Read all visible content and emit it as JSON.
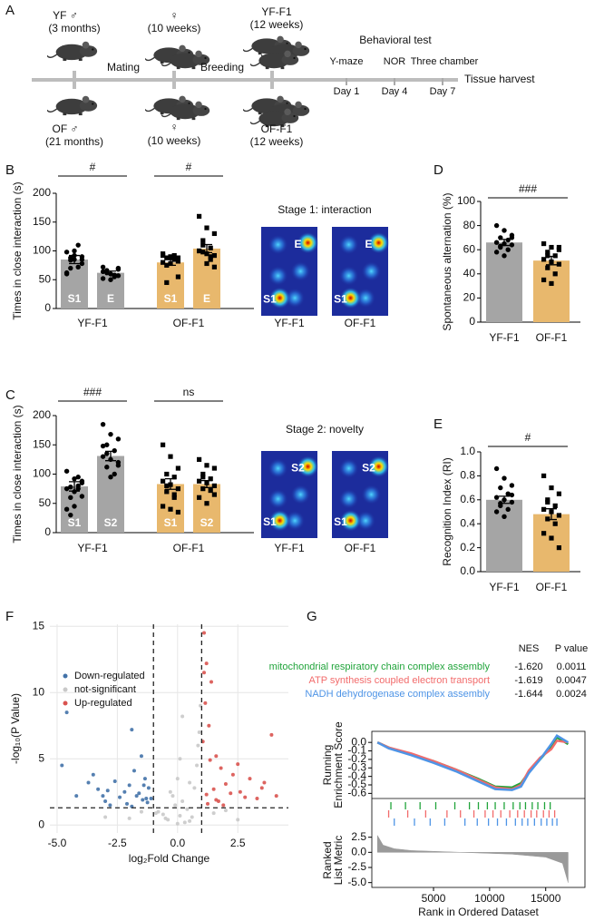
{
  "diagram": {
    "panel": "A",
    "top": [
      {
        "name": "YF ♂",
        "age": "(3 months)"
      },
      {
        "name": "♀",
        "age": "(10 weeks)"
      },
      {
        "name": "YF-F1",
        "age": "(12 weeks)"
      }
    ],
    "bottom": [
      {
        "name": "OF ♂",
        "age": "(21 months)"
      },
      {
        "name": "♀",
        "age": "(10 weeks)"
      },
      {
        "name": "OF-F1",
        "age": "(12 weeks)"
      }
    ],
    "steps": [
      "Mating",
      "Breeding"
    ],
    "test_title": "Behavioral test",
    "tests": [
      {
        "name": "Y-maze",
        "day": "Day 1"
      },
      {
        "name": "NOR",
        "day": "Day 4"
      },
      {
        "name": "Three chamber",
        "day": "Day 7"
      }
    ],
    "end": "Tissue harvest"
  },
  "chart_data": [
    {
      "type": "bar",
      "panel": "B",
      "ylabel": "Times in close interaction (s)",
      "ylim": [
        0,
        200
      ],
      "yticks": [
        0,
        50,
        100,
        150,
        200
      ],
      "groups": [
        "YF-F1",
        "OF-F1"
      ],
      "categories": [
        "S1",
        "E",
        "S1",
        "E"
      ],
      "values": [
        85,
        62,
        80,
        104
      ],
      "errors": [
        7,
        3,
        5,
        7
      ],
      "colors": [
        "#a5a5a5",
        "#a5a5a5",
        "#e8b86d",
        "#e8b86d"
      ],
      "markers": [
        "circle",
        "circle",
        "square",
        "square"
      ],
      "points": [
        [
          98,
          92,
          78,
          88,
          72,
          60,
          100,
          85,
          84,
          110,
          62,
          85,
          90,
          70
        ],
        [
          72,
          60,
          68,
          66,
          55,
          52,
          50,
          70,
          62,
          58,
          64,
          60,
          57
        ],
        [
          92,
          90,
          88,
          75,
          85,
          95,
          88,
          55,
          45,
          92,
          80,
          78,
          82,
          88
        ],
        [
          160,
          140,
          130,
          110,
          105,
          100,
          95,
          92,
          98,
          85,
          100,
          78,
          72,
          118,
          90
        ]
      ],
      "annotations": [
        "#",
        "#"
      ],
      "heatmap": {
        "title": "Stage 1: interaction",
        "panels": [
          {
            "label": "YF-F1",
            "spots": [
              "E",
              "S1"
            ]
          },
          {
            "label": "OF-F1",
            "spots": [
              "E",
              "S1"
            ]
          }
        ]
      }
    },
    {
      "type": "bar",
      "panel": "C",
      "ylabel": "Times in close interaction (s)",
      "ylim": [
        0,
        200
      ],
      "yticks": [
        0,
        50,
        100,
        150,
        200
      ],
      "groups": [
        "YF-F1",
        "OF-F1"
      ],
      "categories": [
        "S1",
        "S2",
        "S1",
        "S2"
      ],
      "values": [
        79,
        131,
        83,
        83
      ],
      "errors": [
        8,
        8,
        9,
        6
      ],
      "colors": [
        "#a5a5a5",
        "#a5a5a5",
        "#e8b86d",
        "#e8b86d"
      ],
      "markers": [
        "circle",
        "circle",
        "square",
        "square"
      ],
      "points": [
        [
          105,
          92,
          85,
          78,
          80,
          75,
          70,
          62,
          60,
          95,
          40,
          45,
          88,
          30,
          75
        ],
        [
          185,
          168,
          160,
          150,
          140,
          130,
          125,
          120,
          112,
          100,
          148,
          95,
          115,
          135
        ],
        [
          150,
          130,
          110,
          100,
          95,
          88,
          82,
          75,
          70,
          60,
          45,
          40,
          35,
          80,
          65
        ],
        [
          125,
          115,
          110,
          100,
          92,
          88,
          85,
          80,
          75,
          72,
          60,
          50,
          65,
          95
        ]
      ],
      "annotations": [
        "###",
        "ns"
      ],
      "heatmap": {
        "title": "Stage 2: novelty",
        "panels": [
          {
            "label": "YF-F1",
            "spots": [
              "S2",
              "S1"
            ]
          },
          {
            "label": "OF-F1",
            "spots": [
              "S2",
              "S1"
            ]
          }
        ]
      }
    },
    {
      "type": "bar",
      "panel": "D",
      "ylabel": "Spontaneous alternation (%)",
      "ylim": [
        0,
        100
      ],
      "yticks": [
        0,
        20,
        40,
        60,
        80,
        100
      ],
      "categories": [
        "YF-F1",
        "OF-F1"
      ],
      "values": [
        66,
        51
      ],
      "errors": [
        2.5,
        3.5
      ],
      "colors": [
        "#a5a5a5",
        "#e8b86d"
      ],
      "markers": [
        "circle",
        "square"
      ],
      "points": [
        [
          80,
          76,
          72,
          70,
          68,
          66,
          65,
          64,
          62,
          60,
          58,
          55,
          70,
          63
        ],
        [
          65,
          62,
          62,
          58,
          55,
          52,
          50,
          48,
          45,
          40,
          35,
          32,
          60,
          55
        ]
      ],
      "annotations": [
        "###"
      ]
    },
    {
      "type": "bar",
      "panel": "E",
      "ylabel": "Recognition Index (RI)",
      "ylim": [
        0,
        1
      ],
      "yticks": [
        {
          "value": 0,
          "label": "0.0"
        },
        0.2,
        0.4,
        0.6,
        0.8,
        {
          "value": 1,
          "label": "1.0"
        }
      ],
      "categories": [
        "YF-F1",
        "OF-F1"
      ],
      "values": [
        0.6,
        0.48
      ],
      "errors": [
        0.03,
        0.045
      ],
      "colors": [
        "#a5a5a5",
        "#e8b86d"
      ],
      "markers": [
        "circle",
        "square"
      ],
      "points": [
        [
          0.86,
          0.78,
          0.72,
          0.7,
          0.65,
          0.62,
          0.6,
          0.58,
          0.55,
          0.52,
          0.5,
          0.46,
          0.64,
          0.57
        ],
        [
          0.8,
          0.7,
          0.65,
          0.6,
          0.55,
          0.52,
          0.5,
          0.47,
          0.44,
          0.4,
          0.32,
          0.28,
          0.2,
          0.58
        ]
      ],
      "annotations": [
        "#"
      ]
    },
    {
      "type": "scatter",
      "panel": "F",
      "xlabel": "log₂Fold Change",
      "ylabel": "-log₁₀(P Value)",
      "xlim": [
        -5.3,
        4.6
      ],
      "ylim": [
        -0.6,
        15.15
      ],
      "xticks": [
        {
          "value": -5,
          "label": "-5.0"
        },
        -2.5,
        {
          "value": 0,
          "label": "0.0"
        },
        2.5
      ],
      "yticks": [
        0,
        5,
        10,
        15
      ],
      "grid": true,
      "vlines": [
        -1,
        1
      ],
      "hline": 1.3,
      "series": [
        {
          "name": "Down-regulated",
          "color": "#4272a8",
          "x": [
            -4.8,
            -4.6,
            -3.7,
            -3.5,
            -3.1,
            -2.9,
            -1.9,
            -1.4,
            -2.6,
            -2.2,
            -1.8,
            -1.5,
            -1.3,
            -1.2,
            -3.0,
            -2.4,
            -2.0,
            -1.6,
            -1.25,
            -4.2,
            -3.3,
            -2.8,
            -1.7,
            -1.1,
            -2.1,
            -1.45,
            -1.9,
            -1.35
          ],
          "values": [
            4.5,
            8.5,
            3.2,
            3.8,
            2.2,
            2.6,
            7.2,
            3.0,
            3.3,
            2.5,
            4.1,
            5.2,
            2.0,
            2.8,
            1.8,
            2.1,
            3.0,
            2.4,
            1.7,
            2.2,
            2.7,
            1.5,
            2.2,
            2.0,
            1.6,
            1.9,
            1.4,
            3.5
          ]
        },
        {
          "name": "not-significant",
          "color": "#c9c9c9",
          "x": [
            -0.8,
            -0.5,
            -0.3,
            0,
            0.2,
            0.5,
            0.8,
            -0.6,
            0.4,
            0.9,
            -0.2,
            0.1,
            0.6,
            -0.9,
            0.3,
            0.7,
            0.95,
            0.85,
            -0.4,
            0.0,
            0.1,
            -0.1,
            1.5,
            -2.0,
            2.0,
            -3.0,
            0.5,
            -1.5,
            2.5,
            0.2
          ],
          "values": [
            1.0,
            0.5,
            2.5,
            3.5,
            1.8,
            0.3,
            4.5,
            0.8,
            1.2,
            7.0,
            2.2,
            5.0,
            0.6,
            0.9,
            0.2,
            2.8,
            9.0,
            6.0,
            0.4,
            0.1,
            0.7,
            1.5,
            0.9,
            0.5,
            1.1,
            0.6,
            3.2,
            1.0,
            0.4,
            8.2
          ]
        },
        {
          "name": "Up-regulated",
          "color": "#d9534f",
          "x": [
            1.1,
            1.2,
            1.4,
            1.6,
            2.0,
            2.5,
            3.0,
            3.6,
            3.9,
            4.1,
            1.3,
            1.5,
            1.8,
            2.2,
            2.8,
            3.3,
            1.05,
            1.15,
            1.7,
            2.3,
            1.25,
            2.6,
            1.9,
            3.5,
            1.35,
            1.1,
            1.2,
            1.6
          ],
          "values": [
            14.5,
            12.2,
            10.8,
            5.2,
            3.1,
            4.6,
            3.5,
            3.2,
            6.8,
            2.2,
            7.5,
            2.7,
            4.3,
            2.4,
            2.1,
            2.0,
            6.3,
            9.2,
            1.8,
            3.8,
            1.6,
            2.5,
            1.5,
            2.8,
            4.9,
            11.5,
            2.3,
            1.9
          ]
        }
      ]
    },
    {
      "type": "line",
      "panel": "G",
      "ylabel": [
        "Running",
        "Enrichment Score"
      ],
      "table_header": [
        "NES",
        "P value"
      ],
      "xlim": [
        -500,
        18500
      ],
      "ylim": [
        -0.66,
        0.13
      ],
      "yticks": [
        {
          "value": 0,
          "label": "0.0"
        },
        -0.1,
        -0.2,
        -0.3,
        -0.4,
        -0.5,
        -0.6
      ],
      "x": [
        0,
        1000,
        3000,
        5000,
        7000,
        9000,
        10500,
        12000,
        12800,
        13500,
        14500,
        15500,
        16000,
        17000
      ],
      "series": [
        {
          "name": "mitochondrial respiratory chain complex assembly",
          "color": "#21a43b",
          "nes": "-1.620",
          "p_value": "0.0011",
          "values": [
            0,
            -0.06,
            -0.14,
            -0.22,
            -0.32,
            -0.43,
            -0.52,
            -0.53,
            -0.48,
            -0.35,
            -0.2,
            -0.05,
            0.06,
            -0.02
          ],
          "hits": [
            1200,
            2500,
            3800,
            5200,
            6900,
            8200,
            9000,
            9800,
            10500,
            11300,
            12100,
            12700,
            13200,
            13800,
            14300,
            14900,
            15400
          ]
        },
        {
          "name": "ATP synthesis coupled electron transport",
          "color": "#f26b6b",
          "nes": "-1.619",
          "p_value": "0.0047",
          "values": [
            0,
            -0.06,
            -0.13,
            -0.22,
            -0.32,
            -0.44,
            -0.53,
            -0.55,
            -0.5,
            -0.33,
            -0.18,
            -0.08,
            0.02,
            0.0
          ],
          "hits": [
            1000,
            2700,
            4300,
            6200,
            7400,
            8600,
            9600,
            10300,
            11000,
            11800,
            12500,
            13100,
            13700,
            14200,
            14800,
            15300,
            15800
          ]
        },
        {
          "name": "NADH dehydrogenase complex assembly",
          "color": "#4e94e6",
          "nes": "-1.644",
          "p_value": "0.0024",
          "values": [
            0,
            -0.07,
            -0.15,
            -0.24,
            -0.34,
            -0.46,
            -0.55,
            -0.56,
            -0.52,
            -0.36,
            -0.2,
            -0.02,
            0.08,
            0.0
          ],
          "hits": [
            1500,
            3300,
            4700,
            6000,
            7800,
            8900,
            9900,
            10700,
            11500,
            12300,
            12900,
            13400,
            14000,
            14600,
            15100,
            15600,
            16000
          ]
        }
      ]
    },
    {
      "type": "area",
      "ylabel": [
        "Ranked",
        "List Metric"
      ],
      "xlabel": "Rank in Ordered Dataset",
      "xlim": [
        -500,
        18500
      ],
      "xticks": [
        5000,
        10000,
        15000
      ],
      "ylim": [
        -5.8,
        3.2
      ],
      "yticks": [
        2.5,
        {
          "value": 0,
          "label": "0.0"
        },
        -2.5,
        {
          "value": -5,
          "label": "-5.0"
        }
      ],
      "color": "#9a9a9a",
      "x": [
        0,
        500,
        1500,
        3000,
        6000,
        9000,
        12000,
        15000,
        16500,
        17000
      ],
      "values": [
        2.8,
        1.2,
        0.6,
        0.3,
        0.1,
        -0.1,
        -0.3,
        -0.8,
        -1.8,
        -5.0
      ]
    }
  ]
}
